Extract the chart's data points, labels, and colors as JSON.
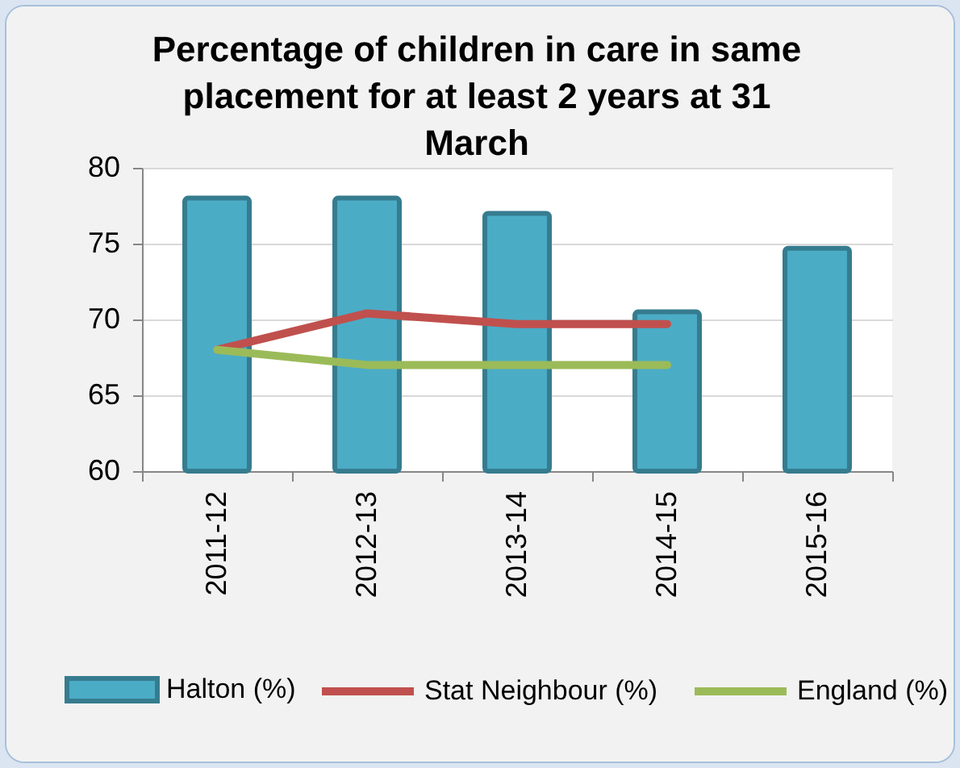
{
  "chart_data": {
    "type": "bar",
    "title": "Percentage of children in care in same placement for at least 2 years at 31 March",
    "categories": [
      "2011-12",
      "2012-13",
      "2013-14",
      "2014-15",
      "2015-16"
    ],
    "series": [
      {
        "name": "Halton (%)",
        "color": "#4bacc6",
        "values": [
          78,
          78,
          77,
          70.5,
          74.7
        ]
      },
      {
        "name": "Stat Neighbour (%)",
        "type": "line",
        "color": "#c0504d",
        "values": [
          68,
          70.4,
          69.7,
          69.7,
          null
        ]
      },
      {
        "name": "England (%)",
        "type": "line",
        "color": "#9bbb59",
        "values": [
          68,
          67,
          67,
          67,
          null
        ]
      }
    ],
    "ylim": [
      60,
      80
    ],
    "yticks": [
      60,
      65,
      70,
      75,
      80
    ],
    "grid": "y",
    "legend": "bottom"
  }
}
